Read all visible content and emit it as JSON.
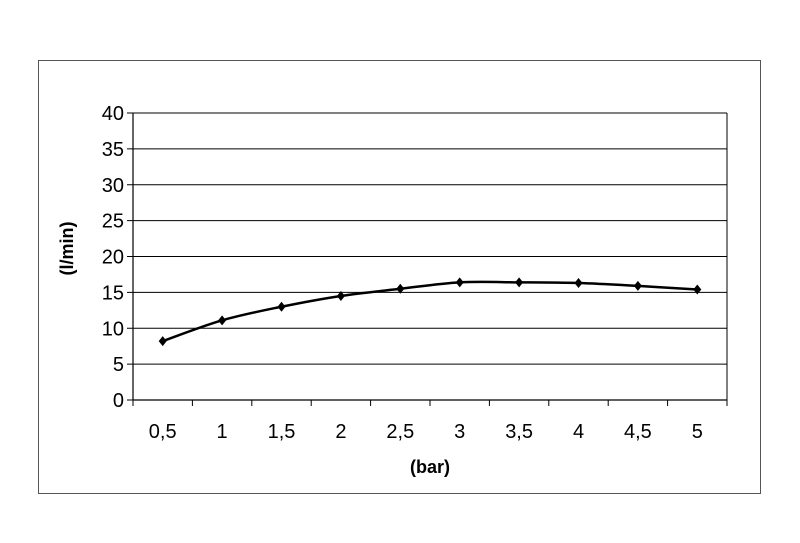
{
  "chart_data": {
    "type": "line",
    "title": "",
    "xlabel": "(bar)",
    "ylabel": "(l/min)",
    "categories": [
      "0,5",
      "1",
      "1,5",
      "2",
      "2,5",
      "3",
      "3,5",
      "4",
      "4,5",
      "5"
    ],
    "series": [
      {
        "values": [
          8.2,
          11.1,
          13.0,
          14.5,
          15.5,
          16.4,
          16.4,
          16.3,
          15.9,
          15.4
        ],
        "color": "#000000",
        "marker": "diamond",
        "smooth": true
      }
    ],
    "yticks": [
      "0",
      "5",
      "10",
      "15",
      "20",
      "25",
      "30",
      "35",
      "40"
    ],
    "ylim": [
      0,
      40
    ],
    "grid": "horizontal",
    "legend": "none"
  }
}
